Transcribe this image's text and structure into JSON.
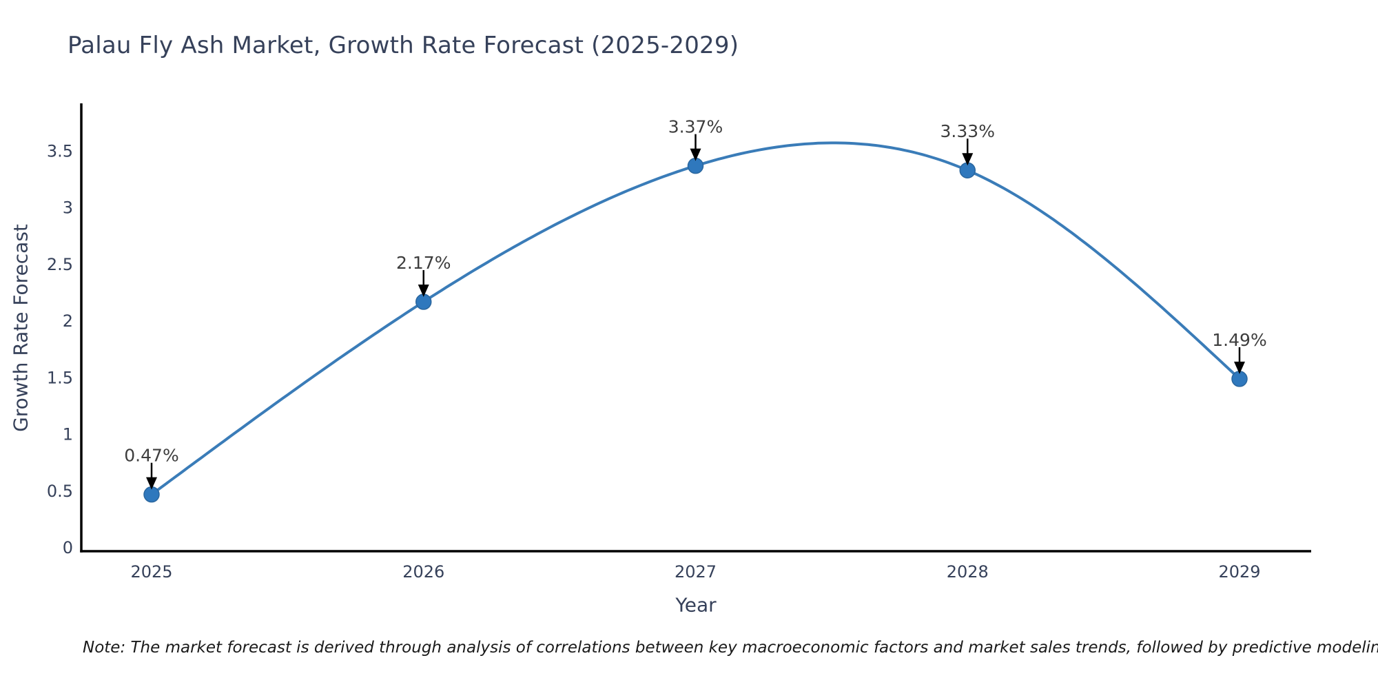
{
  "title": "Palau Fly Ash Market, Growth Rate Forecast (2025-2029)",
  "note": "Note: The market forecast is derived through analysis of correlations between key macroeconomic factors and market sales trends, followed by predictive modeling to project future sales",
  "chart_data": {
    "type": "line",
    "curve": "smooth-spline",
    "x": [
      2025,
      2026,
      2027,
      2028,
      2029
    ],
    "xtick_labels": [
      "2025",
      "2026",
      "2027",
      "2028",
      "2029"
    ],
    "series": [
      {
        "name": "Growth Rate Forecast",
        "values": [
          0.47,
          2.17,
          3.37,
          3.33,
          1.49
        ]
      }
    ],
    "point_labels": [
      "0.47%",
      "2.17%",
      "3.37%",
      "3.33%",
      "1.49%"
    ],
    "title": "Palau Fly Ash Market, Growth Rate Forecast (2025-2029)",
    "xlabel": "Year",
    "ylabel": "Growth Rate Forecast",
    "ytick_values": [
      0,
      0.5,
      1,
      1.5,
      2,
      2.5,
      3,
      3.5
    ],
    "ytick_labels": [
      "0",
      "0.5",
      "1",
      "1.5",
      "2",
      "2.5",
      "3",
      "3.5"
    ],
    "ylim": [
      0,
      3.9
    ],
    "xlim": [
      2024.74,
      2029.26
    ],
    "grid": false,
    "legend_position": "none",
    "marker_shape": "circle",
    "annotation_arrows": true,
    "colors": {
      "line": "#3a7cb8",
      "marker": "#2f78bd",
      "marker_edge": "#2a669e",
      "axis": "#000000",
      "tick_text": "#36415a",
      "title_text": "#36415a",
      "annotation_text": "#3d3d3d",
      "arrow": "#000000",
      "note_text": "#1a1a1a",
      "background": "#ffffff"
    }
  }
}
